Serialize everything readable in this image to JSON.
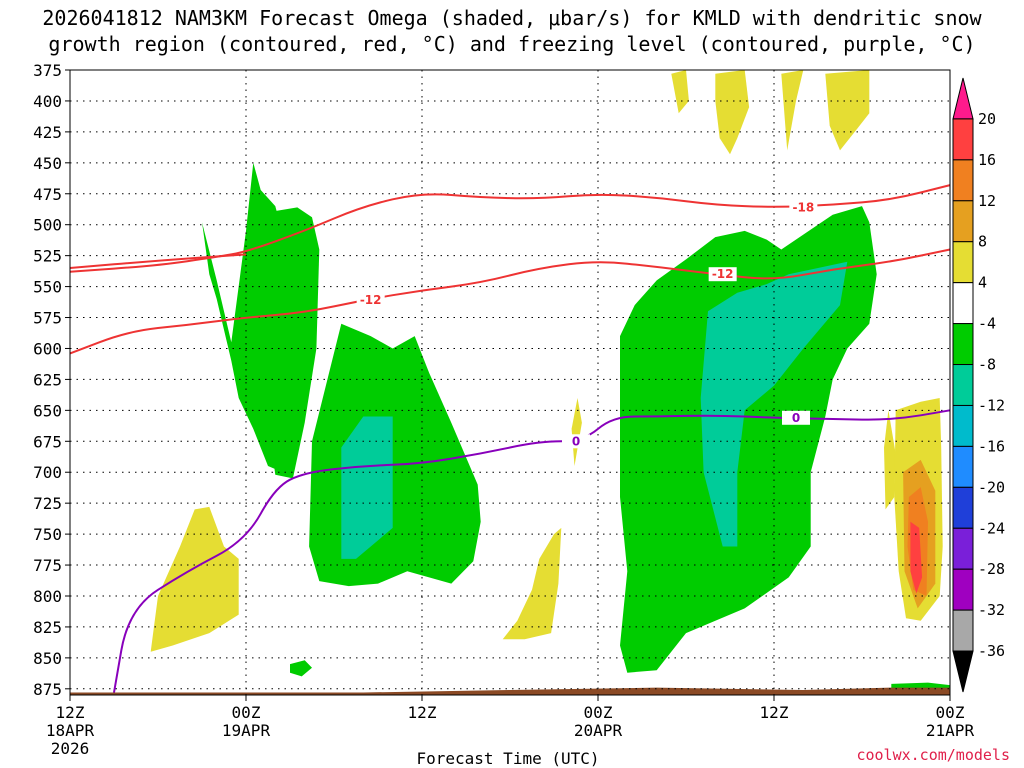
{
  "title_line1": "2026041812 NAM3KM Forecast Omega (shaded, μbar/s) for KMLD with dendritic snow",
  "title_line2": "growth region (contoured, red, °C) and freezing level (contoured, purple, °C)",
  "credit": "coolwx.com/models",
  "colors": {
    "omega_-4_-8": "#00cc00",
    "omega_-8_-12": "#00cc99",
    "omega_4_8": "#e5dd33",
    "omega_8_12": "#e5a020",
    "omega_12_16": "#f08020",
    "omega_16_20": "#ff4040",
    "dgz_contour": "#ee3333",
    "freezing_contour": "#8800bb",
    "ground": "#8b4a25"
  },
  "chart_data": {
    "type": "heatmap",
    "xlabel": "Forecast Time (UTC)",
    "ylabel": "",
    "y_axis": {
      "unit": "hPa",
      "inverted": true,
      "ylim": [
        375,
        880
      ],
      "ticks": [
        375,
        400,
        425,
        450,
        475,
        500,
        525,
        550,
        575,
        600,
        625,
        650,
        675,
        700,
        725,
        750,
        775,
        800,
        825,
        850,
        875
      ]
    },
    "x_axis": {
      "start": "2026-04-18T12Z",
      "end": "2026-04-21T00Z",
      "ticks": [
        {
          "hour": 0,
          "label": "12Z",
          "sub": "18APR",
          "sub2": "2026"
        },
        {
          "hour": 12,
          "label": "00Z",
          "sub": "19APR",
          "sub2": ""
        },
        {
          "hour": 24,
          "label": "12Z",
          "sub": "",
          "sub2": ""
        },
        {
          "hour": 36,
          "label": "00Z",
          "sub": "20APR",
          "sub2": ""
        },
        {
          "hour": 48,
          "label": "12Z",
          "sub": "",
          "sub2": ""
        },
        {
          "hour": 60,
          "label": "00Z",
          "sub": "21APR",
          "sub2": ""
        }
      ]
    },
    "grid": true,
    "colorbar": {
      "labels": [
        "20",
        "16",
        "12",
        "8",
        "4",
        "-4",
        "-8",
        "-12",
        "-16",
        "-20",
        "-24",
        "-28",
        "-32",
        "-36"
      ],
      "colors": [
        "#ff1a8c",
        "#ff4040",
        "#f08020",
        "#e5a020",
        "#e5dd33",
        "#ffffff",
        "#00cc00",
        "#00cc99",
        "#00bbcc",
        "#1f8cff",
        "#1f3fd9",
        "#7a1fd9",
        "#9f00c0",
        "#a8a8a8",
        "#000000"
      ]
    },
    "contour_labels": [
      "-18",
      "-12",
      "-12",
      "0",
      "0"
    ],
    "dgz_upper": [
      [
        0,
        538
      ],
      [
        6,
        533
      ],
      [
        10,
        526
      ],
      [
        12,
        522
      ],
      [
        16,
        505
      ],
      [
        20,
        485
      ],
      [
        24,
        474
      ],
      [
        28,
        478
      ],
      [
        32,
        479
      ],
      [
        36,
        475
      ],
      [
        40,
        478
      ],
      [
        44,
        484
      ],
      [
        48,
        486
      ],
      [
        52,
        484
      ],
      [
        56,
        480
      ],
      [
        60,
        468
      ]
    ],
    "dgz_lower": [
      [
        0,
        604
      ],
      [
        4,
        586
      ],
      [
        8,
        581
      ],
      [
        12,
        575
      ],
      [
        16,
        571
      ],
      [
        20,
        561
      ],
      [
        24,
        553
      ],
      [
        28,
        547
      ],
      [
        32,
        535
      ],
      [
        36,
        529
      ],
      [
        40,
        534
      ],
      [
        44,
        540
      ],
      [
        48,
        545
      ],
      [
        52,
        536
      ],
      [
        56,
        530
      ],
      [
        60,
        520
      ]
    ],
    "dgz_upper_right_branch": [
      [
        0,
        535
      ],
      [
        6,
        529
      ],
      [
        12,
        524
      ]
    ],
    "freezing_level": [
      [
        3,
        878
      ],
      [
        4,
        810
      ],
      [
        8,
        780
      ],
      [
        12,
        755
      ],
      [
        14,
        712
      ],
      [
        16,
        700
      ],
      [
        20,
        695
      ],
      [
        24,
        693
      ],
      [
        28,
        685
      ],
      [
        32,
        675
      ],
      [
        35,
        675
      ],
      [
        37,
        655
      ],
      [
        40,
        655
      ],
      [
        44,
        654
      ],
      [
        48,
        656
      ],
      [
        52,
        657
      ],
      [
        56,
        658
      ],
      [
        60,
        650
      ]
    ],
    "omega_regions": [
      {
        "level": "-4_-8",
        "points": [
          [
            9,
            498
          ],
          [
            10,
            545
          ],
          [
            11,
            595
          ],
          [
            12,
            505
          ],
          [
            12.5,
            450
          ],
          [
            13,
            472
          ],
          [
            14,
            485
          ],
          [
            15,
            530
          ],
          [
            15.5,
            560
          ],
          [
            16,
            600
          ],
          [
            16,
            625
          ],
          [
            15,
            660
          ],
          [
            14.5,
            700
          ],
          [
            13.5,
            695
          ],
          [
            12.5,
            665
          ],
          [
            11.5,
            640
          ],
          [
            11,
            610
          ],
          [
            10,
            560
          ],
          [
            9.5,
            540
          ]
        ]
      },
      {
        "level": "-4_-8",
        "points": [
          [
            13.5,
            490
          ],
          [
            15.5,
            486
          ],
          [
            16.5,
            494
          ],
          [
            17,
            520
          ],
          [
            16.8,
            600
          ],
          [
            16,
            660
          ],
          [
            15.2,
            705
          ],
          [
            14,
            702
          ],
          [
            13.3,
            640
          ],
          [
            13,
            560
          ]
        ]
      },
      {
        "level": "-4_-8",
        "points": [
          [
            16.5,
            675
          ],
          [
            18.5,
            580
          ],
          [
            20.5,
            590
          ],
          [
            22,
            600
          ],
          [
            23.5,
            590
          ],
          [
            24.5,
            620
          ],
          [
            26,
            660
          ],
          [
            27.8,
            710
          ],
          [
            28,
            740
          ],
          [
            27.5,
            772
          ],
          [
            26,
            790
          ],
          [
            23,
            780
          ],
          [
            21,
            790
          ],
          [
            19,
            792
          ],
          [
            17,
            788
          ],
          [
            16.3,
            760
          ]
        ]
      },
      {
        "level": "-8_-12",
        "points": [
          [
            18.5,
            680
          ],
          [
            20,
            655
          ],
          [
            22,
            655
          ],
          [
            22,
            745
          ],
          [
            19.5,
            770
          ],
          [
            18.5,
            770
          ]
        ]
      },
      {
        "level": "-4_-8",
        "points": [
          [
            37.5,
            590
          ],
          [
            38.5,
            565
          ],
          [
            40,
            545
          ],
          [
            42,
            528
          ],
          [
            44,
            510
          ],
          [
            46,
            505
          ],
          [
            47.5,
            512
          ],
          [
            48.5,
            520
          ],
          [
            50,
            508
          ],
          [
            52,
            492
          ],
          [
            54,
            485
          ],
          [
            54.5,
            498
          ],
          [
            55,
            540
          ],
          [
            54.5,
            580
          ],
          [
            53,
            600
          ],
          [
            52,
            625
          ],
          [
            51.5,
            655
          ],
          [
            50.5,
            700
          ],
          [
            50.5,
            760
          ],
          [
            49,
            785
          ],
          [
            46,
            810
          ],
          [
            42,
            830
          ],
          [
            40,
            860
          ],
          [
            38,
            862
          ],
          [
            37.5,
            840
          ],
          [
            38,
            780
          ],
          [
            37.5,
            720
          ],
          [
            37.5,
            650
          ]
        ]
      },
      {
        "level": "-8_-12",
        "points": [
          [
            43.5,
            570
          ],
          [
            45.5,
            555
          ],
          [
            47.5,
            548
          ],
          [
            49,
            540
          ],
          [
            51,
            535
          ],
          [
            53,
            530
          ],
          [
            52.5,
            565
          ],
          [
            50,
            600
          ],
          [
            48,
            630
          ],
          [
            46,
            650
          ],
          [
            45.5,
            700
          ],
          [
            45.5,
            760
          ],
          [
            44.5,
            760
          ],
          [
            43.2,
            700
          ],
          [
            43,
            640
          ]
        ]
      },
      {
        "level": "-4_-8",
        "points": [
          [
            15,
            855
          ],
          [
            16,
            852
          ],
          [
            16.5,
            858
          ],
          [
            15.8,
            865
          ],
          [
            15,
            862
          ]
        ]
      },
      {
        "level": "-4_-8",
        "points": [
          [
            56,
            871
          ],
          [
            58.5,
            870
          ],
          [
            60,
            872
          ],
          [
            60,
            878
          ],
          [
            56,
            878
          ]
        ]
      },
      {
        "level": "4_8",
        "points": [
          [
            6,
            800
          ],
          [
            7.5,
            760
          ],
          [
            8.5,
            730
          ],
          [
            9.5,
            728
          ],
          [
            10.5,
            760
          ],
          [
            11.5,
            770
          ],
          [
            11.5,
            815
          ],
          [
            9.5,
            830
          ],
          [
            7,
            840
          ],
          [
            5.5,
            845
          ]
        ]
      },
      {
        "level": "4_8",
        "points": [
          [
            29.5,
            835
          ],
          [
            30.5,
            820
          ],
          [
            31.5,
            795
          ],
          [
            32,
            770
          ],
          [
            33,
            750
          ],
          [
            33.5,
            745
          ],
          [
            33.3,
            790
          ],
          [
            32.8,
            830
          ],
          [
            31,
            835
          ]
        ]
      },
      {
        "level": "4_8",
        "points": [
          [
            34.2,
            665
          ],
          [
            34.6,
            640
          ],
          [
            34.9,
            660
          ],
          [
            34.4,
            695
          ]
        ]
      },
      {
        "level": "4_8",
        "points": [
          [
            41,
            378
          ],
          [
            42,
            375
          ],
          [
            42.2,
            400
          ],
          [
            41.5,
            410
          ]
        ]
      },
      {
        "level": "4_8",
        "points": [
          [
            44,
            378
          ],
          [
            46,
            375
          ],
          [
            46.3,
            405
          ],
          [
            45.5,
            430
          ],
          [
            45,
            443
          ],
          [
            44.3,
            430
          ],
          [
            44,
            400
          ]
        ]
      },
      {
        "level": "4_8",
        "points": [
          [
            48.5,
            378
          ],
          [
            50,
            375
          ],
          [
            49.5,
            400
          ],
          [
            48.9,
            440
          ]
        ]
      },
      {
        "level": "4_8",
        "points": [
          [
            51.5,
            378
          ],
          [
            54.5,
            375
          ],
          [
            54.5,
            410
          ],
          [
            53.5,
            425
          ],
          [
            52.5,
            440
          ],
          [
            51.8,
            420
          ]
        ]
      },
      {
        "level": "4_8",
        "points": [
          [
            55.5,
            680
          ],
          [
            55.8,
            650
          ],
          [
            56.3,
            685
          ],
          [
            56.2,
            720
          ],
          [
            55.6,
            730
          ]
        ]
      },
      {
        "level": "4_8",
        "points": [
          [
            56.3,
            650
          ],
          [
            58,
            643
          ],
          [
            59.3,
            640
          ],
          [
            59.4,
            680
          ],
          [
            59.5,
            760
          ],
          [
            59.3,
            800
          ],
          [
            58,
            820
          ],
          [
            57,
            818
          ],
          [
            56.5,
            780
          ],
          [
            56.2,
            720
          ]
        ]
      },
      {
        "level": "8_12",
        "points": [
          [
            56.8,
            700
          ],
          [
            58,
            690
          ],
          [
            59,
            715
          ],
          [
            59,
            790
          ],
          [
            57.8,
            810
          ],
          [
            56.9,
            780
          ]
        ]
      },
      {
        "level": "12_16",
        "points": [
          [
            57.2,
            720
          ],
          [
            58,
            712
          ],
          [
            58.5,
            740
          ],
          [
            58.4,
            800
          ],
          [
            57.5,
            795
          ],
          [
            57.1,
            760
          ]
        ]
      },
      {
        "level": "16_20",
        "points": [
          [
            57.3,
            740
          ],
          [
            57.9,
            745
          ],
          [
            58.1,
            785
          ],
          [
            57.7,
            798
          ],
          [
            57.3,
            780
          ]
        ]
      }
    ]
  }
}
